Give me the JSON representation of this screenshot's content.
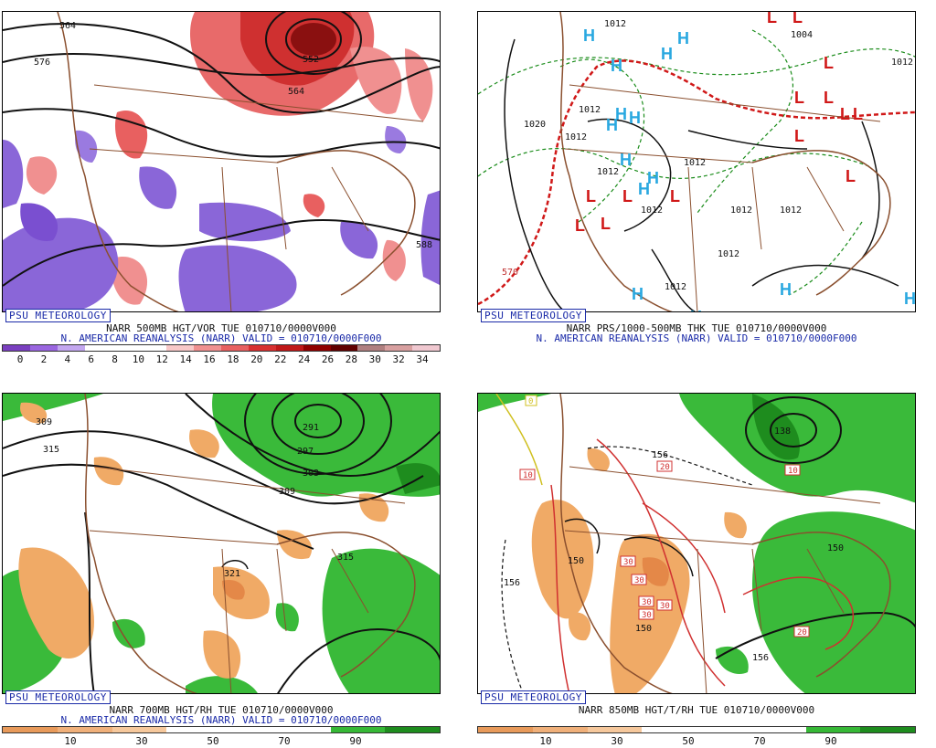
{
  "panels": [
    {
      "badge": "PSU METEOROLOGY",
      "caption1": "NARR 500MB HGT/VOR TUE 010710/0000V000",
      "caption2": "N. AMERICAN REANALYSIS (NARR) VALID = 010710/0000F000",
      "colorbar": [
        "#7a3fc0",
        "#9a66e0",
        "#c3a7f0",
        "#ffffff",
        "#ffffff",
        "#ffffff",
        "#f8c8c8",
        "#f09090",
        "#e86060",
        "#d83030",
        "#c01818",
        "#900000",
        "#600000",
        "#b08080",
        "#d8a0a0",
        "#f0c8d0"
      ],
      "ticks": [
        "0",
        "2",
        "4",
        "6",
        "8",
        "10",
        "12",
        "14",
        "16",
        "18",
        "20",
        "22",
        "24",
        "26",
        "28",
        "30",
        "32",
        "34"
      ],
      "contour_labels": [
        "564",
        "576",
        "552",
        "564",
        "588"
      ]
    },
    {
      "badge": "PSU METEOROLOGY",
      "caption1": "NARR PRS/1000-500MB THK TUE 010710/0000V000",
      "caption2": "N. AMERICAN REANALYSIS (NARR) VALID = 010710/0000F000",
      "contour_labels": [
        "1012",
        "1004",
        "1012",
        "1020",
        "1012",
        "1012",
        "1012",
        "1012",
        "1012",
        "1012",
        "1012",
        "1012",
        "1012",
        "570"
      ],
      "highs": "H",
      "lows": "L"
    },
    {
      "badge": "PSU METEOROLOGY",
      "caption1": "NARR 700MB HGT/RH TUE 010710/0000V000",
      "caption2": "N. AMERICAN REANALYSIS (NARR) VALID = 010710/0000F000",
      "colorbar": [
        "#e89a5a",
        "#f0b07a",
        "#f6c89c",
        "#ffffff",
        "#ffffff",
        "#ffffff",
        "#36b836",
        "#1e8c1e"
      ],
      "ticks": [
        "10",
        "30",
        "50",
        "70",
        "90"
      ],
      "contour_labels": [
        "309",
        "315",
        "291",
        "297",
        "303",
        "309",
        "321",
        "315"
      ]
    },
    {
      "badge": "PSU METEOROLOGY",
      "caption1": "NARR 850MB HGT/T/RH TUE 010710/0000V000",
      "caption2": "",
      "colorbar": [
        "#e89a5a",
        "#f0b07a",
        "#f6c89c",
        "#ffffff",
        "#ffffff",
        "#ffffff",
        "#36b836",
        "#1e8c1e"
      ],
      "ticks": [
        "10",
        "30",
        "50",
        "70",
        "90"
      ],
      "contour_labels": [
        "156",
        "150",
        "150",
        "156",
        "156",
        "138",
        "150"
      ],
      "temp_labels": [
        "10",
        "20",
        "30",
        "30",
        "30",
        "30",
        "30",
        "20",
        "10",
        "0"
      ]
    }
  ]
}
